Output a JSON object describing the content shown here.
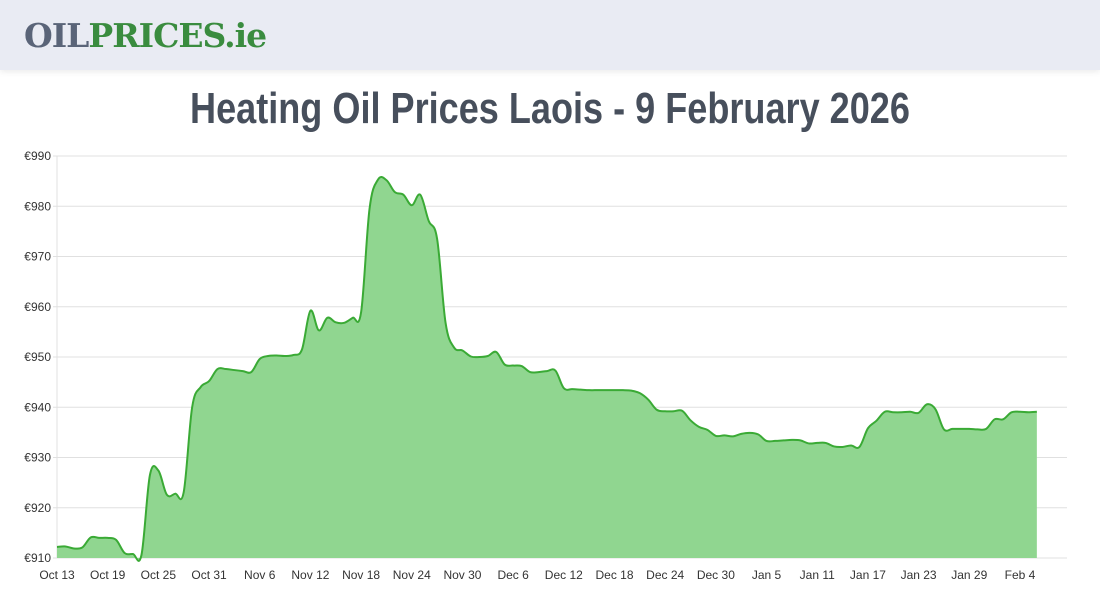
{
  "header": {
    "logo_part1": "OIL",
    "logo_part2": "PRICES.ie",
    "logo_colors": {
      "oil": "#5a6478",
      "prices": "#3a8c3f"
    }
  },
  "page": {
    "title": "Heating Oil Prices Laois - 9 February 2026"
  },
  "chart_data": {
    "type": "area",
    "title": "Heating Oil Prices Laois - 9 February 2026",
    "xlabel": "",
    "ylabel": "",
    "ylim": [
      910,
      990
    ],
    "grid": true,
    "legend": "none",
    "line_color": "#3aaa35",
    "fill_color": "#90d690",
    "y_ticks": [
      "€910",
      "€920",
      "€930",
      "€940",
      "€950",
      "€960",
      "€970",
      "€980",
      "€990"
    ],
    "x_ticks": [
      "Oct 13",
      "Oct 19",
      "Oct 25",
      "Oct 31",
      "Nov 6",
      "Nov 12",
      "Nov 18",
      "Nov 24",
      "Nov 30",
      "Dec 6",
      "Dec 12",
      "Dec 18",
      "Dec 24",
      "Dec 30",
      "Jan 5",
      "Jan 11",
      "Jan 17",
      "Jan 23",
      "Jan 29",
      "Feb 4"
    ],
    "x_start": "Oct 13",
    "x_end": "Feb 9",
    "points": [
      [
        0,
        912.2
      ],
      [
        1,
        912.3
      ],
      [
        2,
        911.9
      ],
      [
        3,
        912.1
      ],
      [
        4,
        914.1
      ],
      [
        5,
        914.0
      ],
      [
        6,
        914.0
      ],
      [
        7,
        913.6
      ],
      [
        8,
        911.0
      ],
      [
        9,
        910.8
      ],
      [
        10,
        910.6
      ],
      [
        11,
        926.5
      ],
      [
        12,
        927.4
      ],
      [
        13,
        922.6
      ],
      [
        14,
        922.8
      ],
      [
        15,
        923.1
      ],
      [
        16,
        940.0
      ],
      [
        17,
        944.0
      ],
      [
        18,
        945.2
      ],
      [
        19,
        947.6
      ],
      [
        20,
        947.6
      ],
      [
        21,
        947.4
      ],
      [
        22,
        947.2
      ],
      [
        23,
        947.0
      ],
      [
        24,
        949.6
      ],
      [
        25,
        950.2
      ],
      [
        26,
        950.3
      ],
      [
        27,
        950.2
      ],
      [
        28,
        950.4
      ],
      [
        29,
        951.5
      ],
      [
        30,
        959.2
      ],
      [
        31,
        955.3
      ],
      [
        32,
        957.8
      ],
      [
        33,
        956.9
      ],
      [
        34,
        956.8
      ],
      [
        35,
        957.8
      ],
      [
        36,
        958.9
      ],
      [
        37,
        979.5
      ],
      [
        38,
        985.3
      ],
      [
        39,
        985.2
      ],
      [
        40,
        982.8
      ],
      [
        41,
        982.3
      ],
      [
        42,
        980.2
      ],
      [
        43,
        982.3
      ],
      [
        44,
        977.1
      ],
      [
        45,
        973.5
      ],
      [
        46,
        956.8
      ],
      [
        47,
        951.9
      ],
      [
        48,
        951.3
      ],
      [
        49,
        950.1
      ],
      [
        50,
        950.0
      ],
      [
        51,
        950.2
      ],
      [
        52,
        951.0
      ],
      [
        53,
        948.5
      ],
      [
        54,
        948.3
      ],
      [
        55,
        948.2
      ],
      [
        56,
        947.0
      ],
      [
        57,
        947.0
      ],
      [
        58,
        947.2
      ],
      [
        59,
        947.3
      ],
      [
        60,
        943.8
      ],
      [
        61,
        943.6
      ],
      [
        62,
        943.5
      ],
      [
        63,
        943.4
      ],
      [
        64,
        943.4
      ],
      [
        65,
        943.4
      ],
      [
        66,
        943.4
      ],
      [
        67,
        943.4
      ],
      [
        68,
        943.3
      ],
      [
        69,
        942.8
      ],
      [
        70,
        941.5
      ],
      [
        71,
        939.5
      ],
      [
        72,
        939.2
      ],
      [
        73,
        939.2
      ],
      [
        74,
        939.3
      ],
      [
        75,
        937.4
      ],
      [
        76,
        936.1
      ],
      [
        77,
        935.5
      ],
      [
        78,
        934.3
      ],
      [
        79,
        934.4
      ],
      [
        80,
        934.2
      ],
      [
        81,
        934.7
      ],
      [
        82,
        934.9
      ],
      [
        83,
        934.6
      ],
      [
        84,
        933.3
      ],
      [
        85,
        933.3
      ],
      [
        86,
        933.4
      ],
      [
        87,
        933.5
      ],
      [
        88,
        933.4
      ],
      [
        89,
        932.8
      ],
      [
        90,
        932.9
      ],
      [
        91,
        932.9
      ],
      [
        92,
        932.2
      ],
      [
        93,
        932.1
      ],
      [
        94,
        932.4
      ],
      [
        95,
        932.1
      ],
      [
        96,
        935.8
      ],
      [
        97,
        937.3
      ],
      [
        98,
        939.1
      ],
      [
        99,
        939.0
      ],
      [
        100,
        939.0
      ],
      [
        101,
        939.1
      ],
      [
        102,
        938.9
      ],
      [
        103,
        940.6
      ],
      [
        104,
        939.6
      ],
      [
        105,
        935.6
      ],
      [
        106,
        935.7
      ],
      [
        107,
        935.7
      ],
      [
        108,
        935.7
      ],
      [
        109,
        935.6
      ],
      [
        110,
        935.7
      ],
      [
        111,
        937.6
      ],
      [
        112,
        937.6
      ],
      [
        113,
        939.0
      ],
      [
        114,
        939.1
      ],
      [
        115,
        939.0
      ],
      [
        116,
        939.1
      ]
    ]
  }
}
